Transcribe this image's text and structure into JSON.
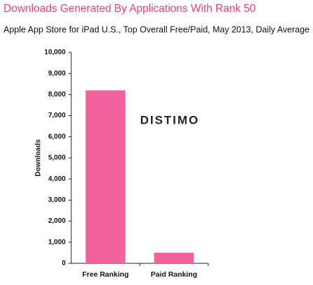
{
  "chart_data": {
    "type": "bar",
    "title": "Downloads Generated By Applications With Rank 50",
    "subtitle": "Apple App Store for iPad U.S., Top Overall Free/Paid, May 2013, Daily Average",
    "watermark": "DISTIMO",
    "ylabel": "Downloads",
    "categories": [
      "Free Ranking",
      "Paid Ranking"
    ],
    "values": [
      8200,
      500
    ],
    "color": "#f2609d",
    "ylim": [
      0,
      10000
    ],
    "yticks": [
      0,
      {
        "value": 1000,
        "label": "1,000"
      },
      {
        "value": 2000,
        "label": "2,000"
      },
      {
        "value": 3000,
        "label": "3,000"
      },
      {
        "value": 4000,
        "label": "4,000"
      },
      {
        "value": 5000,
        "label": "5,000"
      },
      {
        "value": 6000,
        "label": "6,000"
      },
      {
        "value": 7000,
        "label": "7,000"
      },
      {
        "value": 8000,
        "label": "8,000"
      },
      {
        "value": 9000,
        "label": "9,000"
      },
      {
        "value": 10000,
        "label": "10,000"
      }
    ],
    "grid": false
  }
}
